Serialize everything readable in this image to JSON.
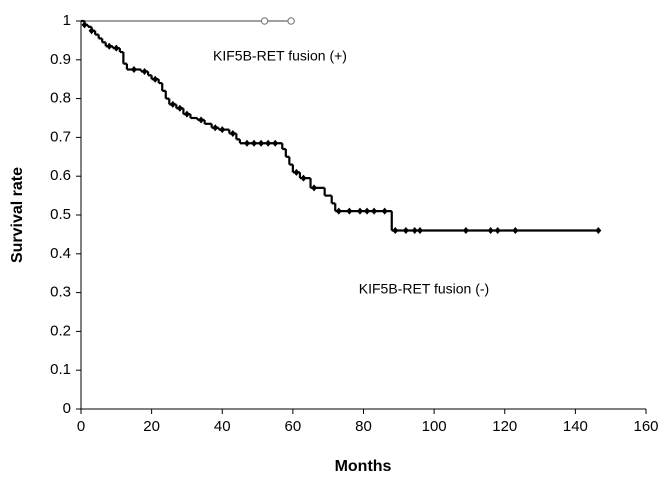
{
  "chart_data": {
    "type": "km",
    "xlabel": "Months",
    "ylabel": "Survival rate",
    "xlim": [
      0,
      160
    ],
    "xticks": [
      0,
      20,
      40,
      60,
      80,
      100,
      120,
      140,
      160
    ],
    "ylim": [
      0,
      1
    ],
    "yticks": [
      0,
      0.1,
      0.2,
      0.3,
      0.4,
      0.5,
      0.6,
      0.7,
      0.8,
      0.9,
      1
    ],
    "grid": false,
    "series": [
      {
        "name": "KIF5B-RET fusion (+)",
        "color": "#808080",
        "x": [
          0,
          59.5
        ],
        "values": [
          1,
          1
        ],
        "censored": {
          "x": [
            52,
            59.5
          ],
          "values": [
            1,
            1
          ]
        }
      },
      {
        "name": "KIF5B-RET fusion (-)",
        "color": "#000000",
        "x": [
          0,
          1,
          2,
          3,
          4,
          5,
          6,
          7,
          9,
          11,
          12,
          13,
          17,
          19,
          20,
          22,
          23,
          24,
          25,
          27,
          29,
          31,
          33,
          35,
          37,
          39,
          42,
          44,
          45,
          57,
          58,
          59,
          60,
          62,
          65,
          69,
          71,
          72,
          88,
          146.5
        ],
        "values": [
          1,
          0.99,
          0.985,
          0.975,
          0.965,
          0.955,
          0.945,
          0.935,
          0.93,
          0.92,
          0.89,
          0.875,
          0.87,
          0.86,
          0.85,
          0.84,
          0.82,
          0.8,
          0.785,
          0.775,
          0.76,
          0.75,
          0.745,
          0.735,
          0.725,
          0.72,
          0.71,
          0.695,
          0.685,
          0.67,
          0.65,
          0.63,
          0.61,
          0.595,
          0.57,
          0.55,
          0.53,
          0.51,
          0.46,
          0.46
        ],
        "censored": {
          "x": [
            1,
            3,
            8,
            10,
            15,
            18,
            21,
            26,
            28,
            30,
            34,
            38,
            40,
            43,
            47,
            49,
            51,
            53,
            55,
            61,
            63,
            66,
            73,
            76,
            79,
            81,
            83,
            86,
            89,
            92,
            94.5,
            96,
            109,
            116,
            118,
            123,
            146.5
          ],
          "values": [
            0.99,
            0.975,
            0.935,
            0.93,
            0.875,
            0.87,
            0.85,
            0.785,
            0.775,
            0.76,
            0.745,
            0.725,
            0.72,
            0.71,
            0.685,
            0.685,
            0.685,
            0.685,
            0.685,
            0.61,
            0.595,
            0.57,
            0.51,
            0.51,
            0.51,
            0.51,
            0.51,
            0.51,
            0.46,
            0.46,
            0.46,
            0.46,
            0.46,
            0.46,
            0.46,
            0.46,
            0.46
          ]
        }
      }
    ]
  }
}
